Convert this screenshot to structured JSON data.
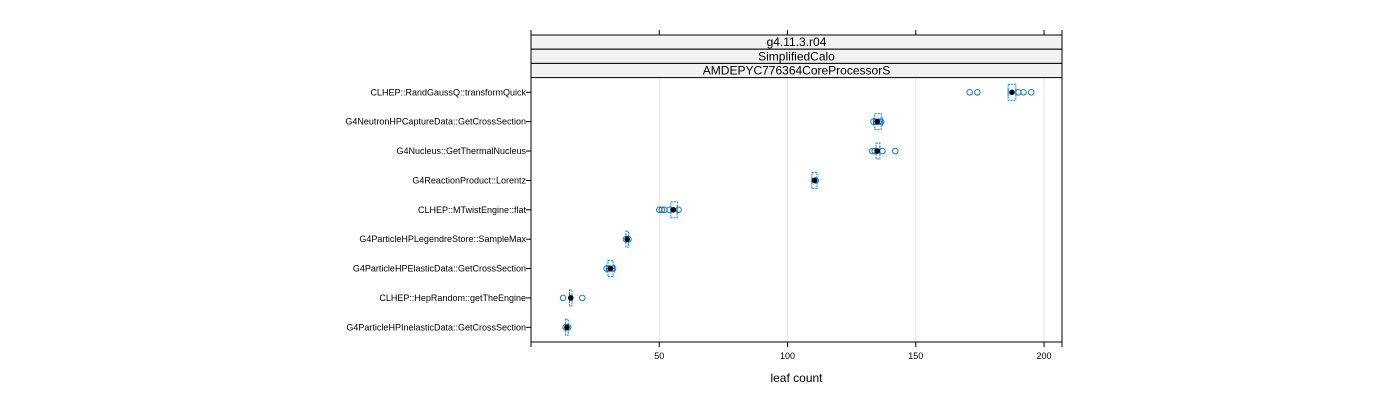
{
  "chart_data": {
    "type": "box",
    "strips": [
      "g4.11.3.r04",
      "SimplifiedCalo",
      "AMDEPYC776364CoreProcessorS"
    ],
    "xlabel": "leaf count",
    "ylabel": "",
    "xlim": [
      0,
      207
    ],
    "x_ticks": [
      50,
      100,
      150,
      200
    ],
    "grid": true,
    "colors": {
      "box": "#0080ff",
      "point": "#1f78b4",
      "median": "#000000",
      "grid": "#e6e6e6"
    },
    "categories": [
      {
        "label": "CLHEP::RandGaussQ::transformQuick",
        "q1": 186,
        "median": 187.5,
        "q3": 189,
        "whisker_low": 186,
        "whisker_high": 189,
        "outliers": [
          171,
          174,
          190,
          192,
          195
        ]
      },
      {
        "label": "G4NeutronHPCaptureData::GetCrossSection",
        "q1": 134,
        "median": 135,
        "q3": 136.5,
        "whisker_low": 133.5,
        "whisker_high": 137,
        "outliers": [
          133.5,
          134.5,
          135.5,
          136.5
        ]
      },
      {
        "label": "G4Nucleus::GetThermalNucleus",
        "q1": 134.5,
        "median": 135,
        "q3": 136,
        "whisker_low": 134.5,
        "whisker_high": 136,
        "outliers": [
          133,
          134,
          137,
          142
        ]
      },
      {
        "label": "G4ReactionProduct::Lorentz",
        "q1": 109.5,
        "median": 110.5,
        "q3": 111.5,
        "whisker_low": 109.5,
        "whisker_high": 111.5,
        "outliers": [
          111
        ]
      },
      {
        "label": "CLHEP::MTwistEngine::flat",
        "q1": 54.5,
        "median": 55.5,
        "q3": 57,
        "whisker_low": 54.5,
        "whisker_high": 57,
        "outliers": [
          50,
          51,
          52,
          54,
          57.5
        ]
      },
      {
        "label": "G4ParticleHPLegendreStore::SampleMax",
        "q1": 37,
        "median": 37.5,
        "q3": 38,
        "whisker_low": 37,
        "whisker_high": 38,
        "outliers": [
          37,
          38
        ]
      },
      {
        "label": "G4ParticleHPElasticData::GetCrossSection",
        "q1": 30,
        "median": 31,
        "q3": 32,
        "whisker_low": 29.5,
        "whisker_high": 32.5,
        "outliers": [
          29.5,
          30.5,
          32
        ]
      },
      {
        "label": "CLHEP::HepRandom::getTheEngine",
        "q1": 15,
        "median": 15.5,
        "q3": 16,
        "whisker_low": 15,
        "whisker_high": 16,
        "outliers": [
          12.5,
          20
        ]
      },
      {
        "label": "G4ParticleHPInelasticData::GetCrossSection",
        "q1": 13.5,
        "median": 14,
        "q3": 14.5,
        "whisker_low": 13.5,
        "whisker_high": 14.5,
        "outliers": [
          13.5,
          14.5
        ]
      }
    ]
  }
}
